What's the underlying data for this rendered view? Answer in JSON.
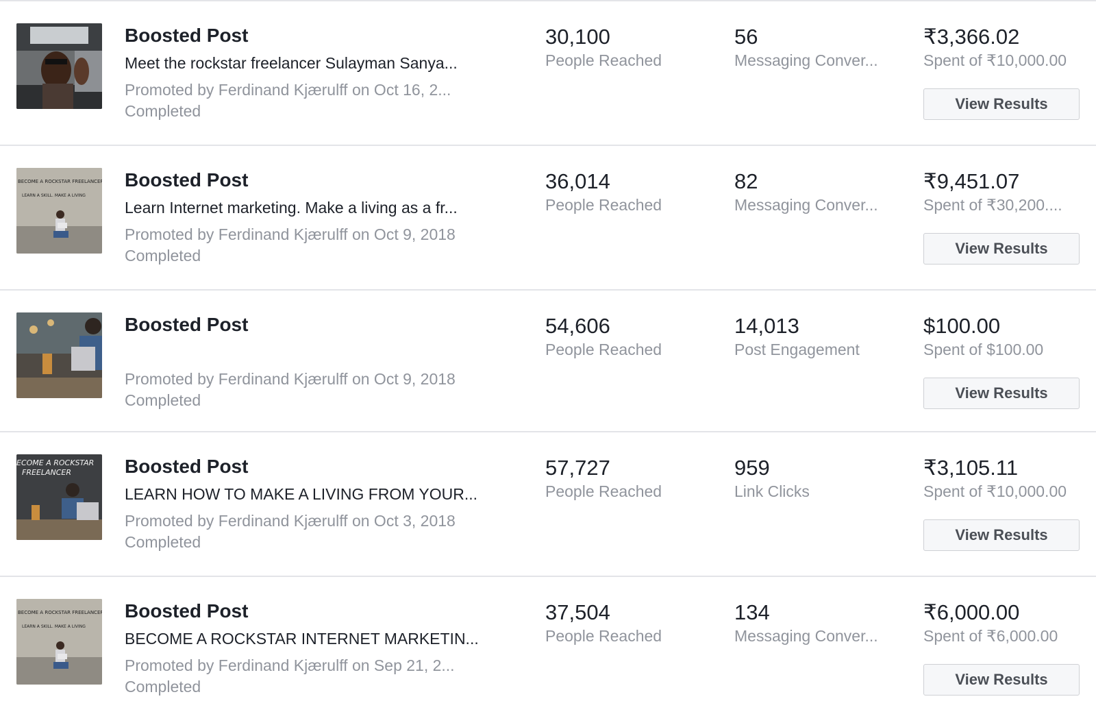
{
  "rows": [
    {
      "title": "Boosted Post",
      "description": "Meet the rockstar freelancer Sulayman Sanya...",
      "promoted": "Promoted by Ferdinand Kjærulff on Oct 16, 2...",
      "status": "Completed",
      "metric1": {
        "value": "30,100",
        "label": "People Reached"
      },
      "metric2": {
        "value": "56",
        "label": "Messaging Conver..."
      },
      "spend": {
        "value": "₹3,366.02",
        "label": "Spent of ₹10,000.00"
      },
      "button": "View Results"
    },
    {
      "title": "Boosted Post",
      "description": "Learn Internet marketing. Make a living as a fr...",
      "promoted": "Promoted by Ferdinand Kjærulff on Oct 9, 2018",
      "status": "Completed",
      "metric1": {
        "value": "36,014",
        "label": "People Reached"
      },
      "metric2": {
        "value": "82",
        "label": "Messaging Conver..."
      },
      "spend": {
        "value": "₹9,451.07",
        "label": "Spent of ₹30,200...."
      },
      "button": "View Results"
    },
    {
      "title": "Boosted Post",
      "description": "",
      "promoted": "Promoted by Ferdinand Kjærulff on Oct 9, 2018",
      "status": "Completed",
      "metric1": {
        "value": "54,606",
        "label": "People Reached"
      },
      "metric2": {
        "value": "14,013",
        "label": "Post Engagement"
      },
      "spend": {
        "value": "$100.00",
        "label": "Spent of $100.00"
      },
      "button": "View Results"
    },
    {
      "title": "Boosted Post",
      "description": "LEARN HOW TO MAKE A LIVING FROM YOUR...",
      "promoted": "Promoted by Ferdinand Kjærulff on Oct 3, 2018",
      "status": "Completed",
      "metric1": {
        "value": "57,727",
        "label": "People Reached"
      },
      "metric2": {
        "value": "959",
        "label": "Link Clicks"
      },
      "spend": {
        "value": "₹3,105.11",
        "label": "Spent of ₹10,000.00"
      },
      "button": "View Results"
    },
    {
      "title": "Boosted Post",
      "description": "BECOME A ROCKSTAR INTERNET MARKETIN...",
      "promoted": "Promoted by Ferdinand Kjærulff on Sep 21, 2...",
      "status": "Completed",
      "metric1": {
        "value": "37,504",
        "label": "People Reached"
      },
      "metric2": {
        "value": "134",
        "label": "Messaging Conver..."
      },
      "spend": {
        "value": "₹6,000.00",
        "label": "Spent of ₹6,000.00"
      },
      "button": "View Results"
    }
  ],
  "thumbnail_text": {
    "poster_line1": "BECOME A ROCKSTAR FREELANCER",
    "poster_line2": "LEARN A SKILL. MAKE A LIVING",
    "photo_line1": "ECOME A ROCKSTAR",
    "photo_line2": "FREELANCER"
  },
  "colors": {
    "text_primary": "#1d2129",
    "text_secondary": "#90949c",
    "divider": "#e3e4e8",
    "button_bg": "#f6f7f9",
    "button_border": "#ced0d4"
  }
}
